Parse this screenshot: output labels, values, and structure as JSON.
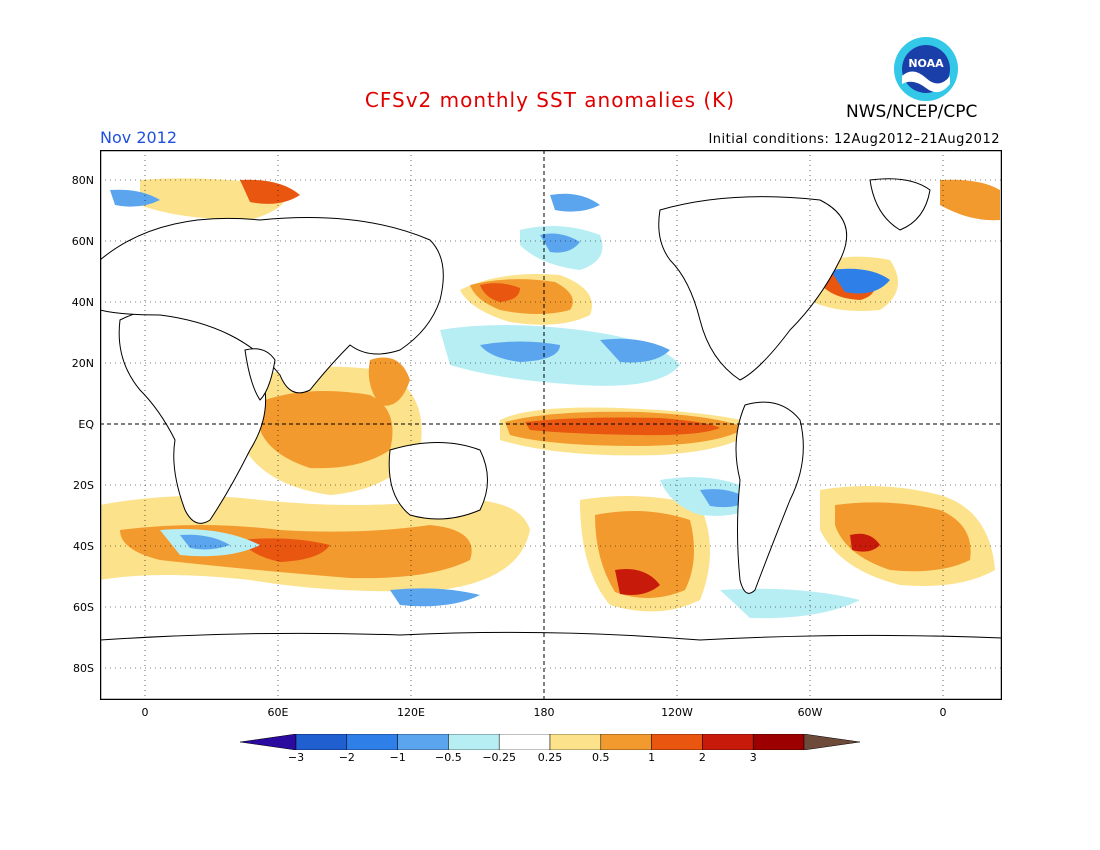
{
  "title": "CFSv2 monthly SST anomalies (K)",
  "month": "Nov 2012",
  "initial_conditions": "Initial conditions: 12Aug2012–21Aug2012",
  "agency": "NWS/NCEP/CPC",
  "logo_text": "NOAA",
  "y_ticks": [
    "80N",
    "60N",
    "40N",
    "20N",
    "EQ",
    "20S",
    "40S",
    "60S",
    "80S"
  ],
  "x_ticks": [
    "0",
    "60E",
    "120E",
    "180",
    "120W",
    "60W",
    "0"
  ],
  "colorbar": {
    "labels": [
      "−3",
      "−2",
      "−1",
      "−0.5",
      "−0.25",
      "0.25",
      "0.5",
      "1",
      "2",
      "3"
    ],
    "colors": [
      "#2b0aa0",
      "#1f5fd0",
      "#2f7fe8",
      "#5aa5ee",
      "#b6eef4",
      "#ffffff",
      "#fce28a",
      "#f39a2e",
      "#e8560f",
      "#c81a0a",
      "#9c0000",
      "#6e4a3a"
    ]
  },
  "colors": {
    "land_bg": "#ffffff",
    "frame": "#000000",
    "title": "#e00000",
    "month": "#2050e0"
  }
}
